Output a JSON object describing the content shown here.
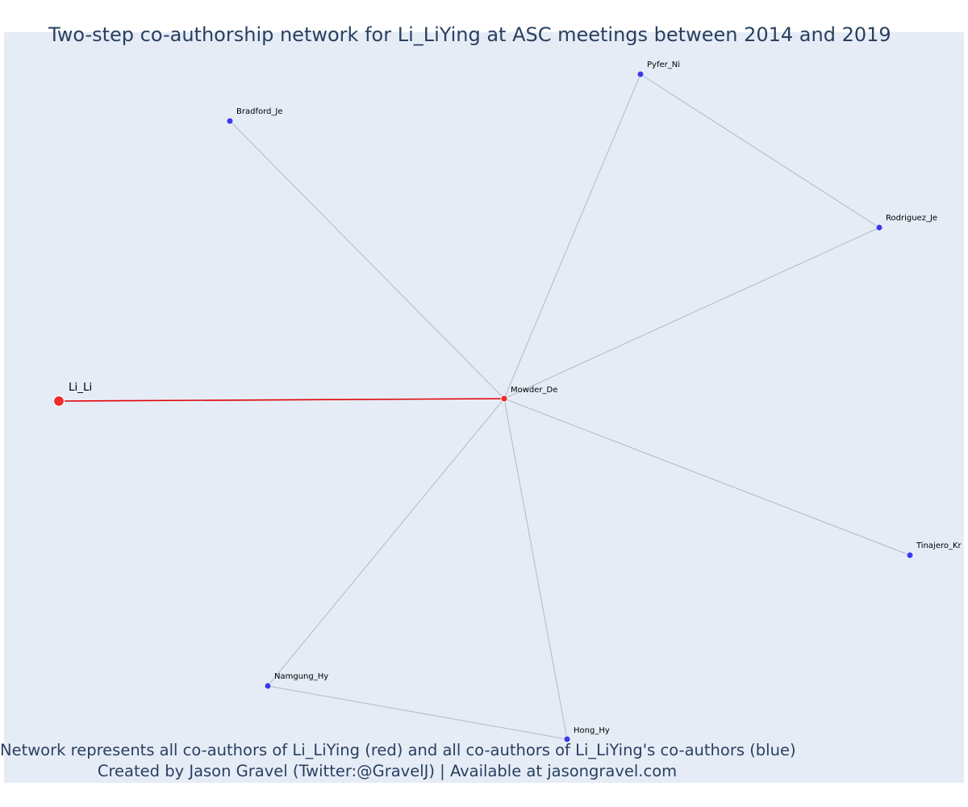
{
  "title": "Two-step co-authorship network for Li_LiYing at ASC meetings between 2014 and 2019",
  "caption": {
    "line1": "Network represents all co-authors of Li_LiYing (red) and all co-authors of Li_LiYing's co-authors (blue)",
    "line2": "Created by Jason Gravel (Twitter:@GravelJ) | Available at jasongravel.com"
  },
  "colors": {
    "background": "#e5ecf6",
    "focal_node": "#ef2b2b",
    "first_step_node": "#ef2b2b",
    "second_step_node": "#3b3bed",
    "focal_edge": "#e00000",
    "other_edge": "#b4b8c8",
    "text": "#2a3f5f"
  },
  "network": {
    "nodes": [
      {
        "id": "Li_Li",
        "label": "Li_Li",
        "group": "focal"
      },
      {
        "id": "Mowder_De",
        "label": "Mowder_De",
        "group": "coauthor"
      },
      {
        "id": "Bradford_Je",
        "label": "Bradford_Je",
        "group": "second_step"
      },
      {
        "id": "Pyfer_Ni",
        "label": "Pyfer_Ni",
        "group": "second_step"
      },
      {
        "id": "Rodriguez_Je",
        "label": "Rodriguez_Je",
        "group": "second_step"
      },
      {
        "id": "Tinajero_Kr",
        "label": "Tinajero_Kr",
        "group": "second_step"
      },
      {
        "id": "Namgung_Hy",
        "label": "Namgung_Hy",
        "group": "second_step"
      },
      {
        "id": "Hong_Hy",
        "label": "Hong_Hy",
        "group": "second_step"
      }
    ],
    "edges": [
      {
        "source": "Li_Li",
        "target": "Mowder_De",
        "type": "focal"
      },
      {
        "source": "Mowder_De",
        "target": "Bradford_Je",
        "type": "other"
      },
      {
        "source": "Mowder_De",
        "target": "Pyfer_Ni",
        "type": "other"
      },
      {
        "source": "Mowder_De",
        "target": "Rodriguez_Je",
        "type": "other"
      },
      {
        "source": "Mowder_De",
        "target": "Tinajero_Kr",
        "type": "other"
      },
      {
        "source": "Mowder_De",
        "target": "Namgung_Hy",
        "type": "other"
      },
      {
        "source": "Mowder_De",
        "target": "Hong_Hy",
        "type": "other"
      },
      {
        "source": "Pyfer_Ni",
        "target": "Rodriguez_Je",
        "type": "other"
      },
      {
        "source": "Namgung_Hy",
        "target": "Hong_Hy",
        "type": "other"
      }
    ]
  }
}
